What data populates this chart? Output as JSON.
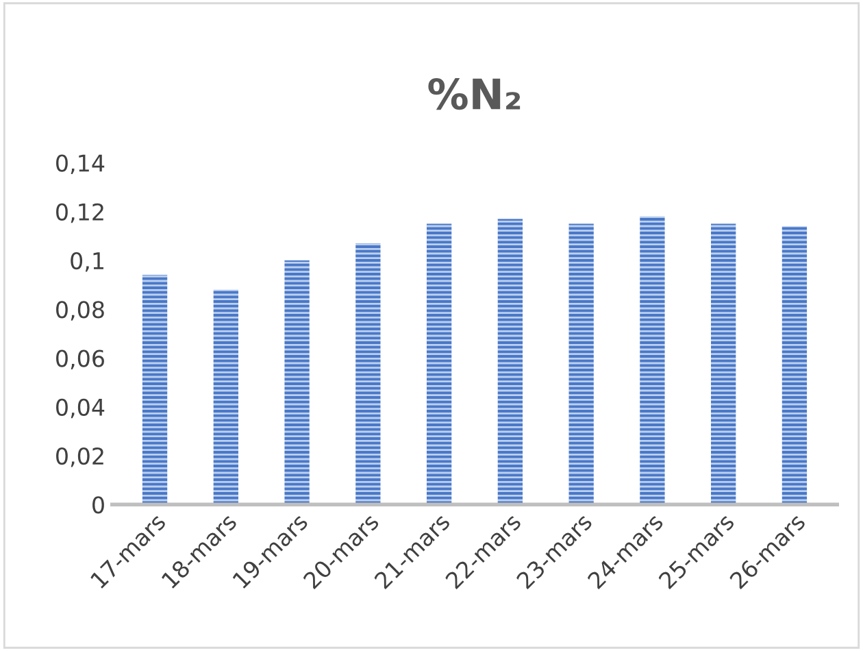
{
  "chart_data": {
    "type": "bar",
    "title": "%N₂",
    "categories": [
      "17-mars",
      "18-mars",
      "19-mars",
      "20-mars",
      "21-mars",
      "22-mars",
      "23-mars",
      "24-mars",
      "25-mars",
      "26-mars"
    ],
    "values": [
      0.094,
      0.088,
      0.1,
      0.107,
      0.115,
      0.117,
      0.115,
      0.118,
      0.115,
      0.114
    ],
    "color": "#4a78c8",
    "ylim": [
      0,
      0.14
    ],
    "yticks": [
      0,
      {
        "value": 0.02,
        "label": "0,02"
      },
      {
        "value": 0.04,
        "label": "0,04"
      },
      {
        "value": 0.06,
        "label": "0,06"
      },
      {
        "value": 0.08,
        "label": "0,08"
      },
      {
        "value": 0.1,
        "label": "0,1"
      },
      {
        "value": 0.12,
        "label": "0,12"
      },
      {
        "value": 0.14,
        "label": "0,14"
      }
    ],
    "grid": false,
    "legend": false
  }
}
